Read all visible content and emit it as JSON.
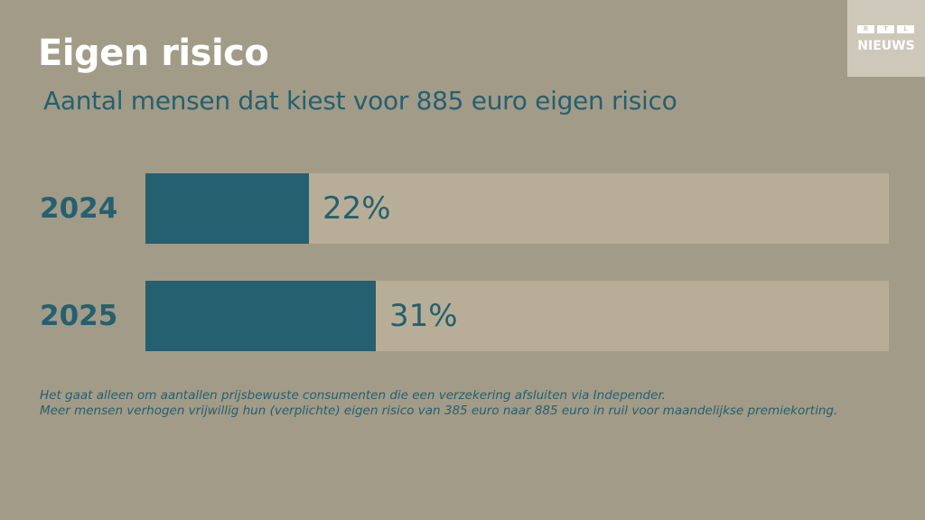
{
  "title": "Eigen risico",
  "subtitle": "Aantal mensen dat kiest voor 885 euro eigen risico",
  "logo": {
    "letters": [
      "R",
      "T",
      "L"
    ],
    "word": "NIEUWS"
  },
  "chart_data": {
    "type": "bar",
    "orientation": "horizontal",
    "categories": [
      "2024",
      "2025"
    ],
    "values": [
      22,
      31
    ],
    "value_labels": [
      "22%",
      "31%"
    ],
    "unit": "%",
    "xlim": [
      0,
      100
    ],
    "grid": false,
    "legend": "none",
    "colors": {
      "bar": "#246070",
      "track": "#b8ae97"
    }
  },
  "footnotes": [
    "Het gaat alleen om aantallen prijsbewuste consumenten die een verzekering afsluiten via Independer.",
    "Meer mensen verhogen vrijwillig hun (verplichte) eigen risico van 385 euro naar 885 euro in ruil voor maandelijkse premiekorting."
  ],
  "colors": {
    "background": "#a29b87",
    "accent": "#246070",
    "title": "#ffffff"
  }
}
